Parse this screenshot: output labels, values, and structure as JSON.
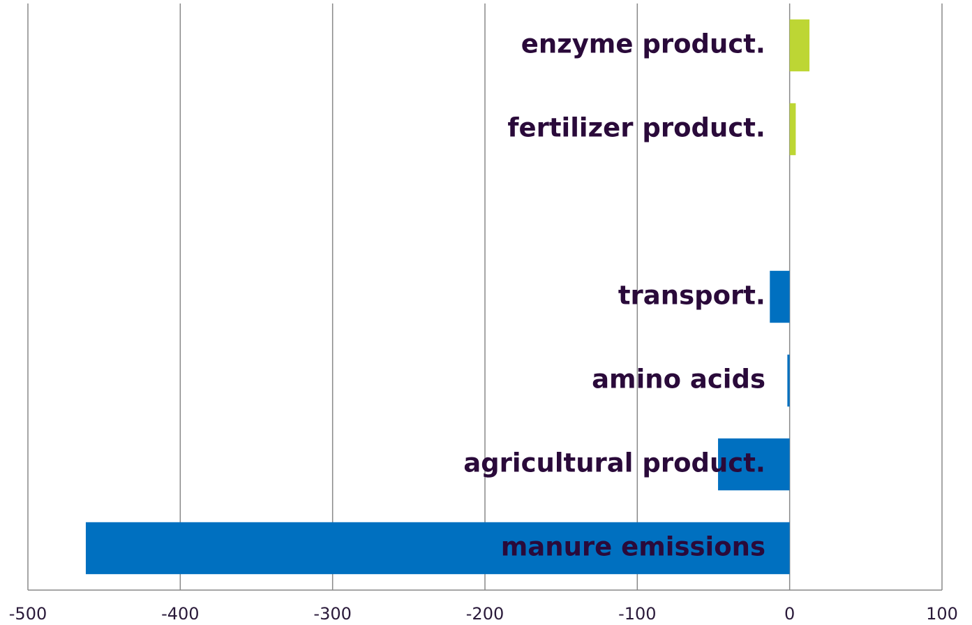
{
  "chart_data": {
    "type": "bar",
    "orientation": "horizontal",
    "categories": [
      "enzyme product.",
      "fertilizer product.",
      null,
      "transport.",
      "amino acids",
      "agricultural product.",
      "manure emissions"
    ],
    "series": [
      {
        "color": "#bdd634",
        "values": [
          13,
          4,
          null,
          null,
          null,
          null,
          null
        ]
      },
      {
        "color": "#0070c0",
        "values": [
          null,
          null,
          null,
          -13,
          -1.5,
          -47,
          -462
        ]
      }
    ],
    "xlim": [
      -500,
      100
    ],
    "xticks": [
      -500,
      -400,
      -300,
      -200,
      -100,
      0,
      100
    ],
    "grid": true
  }
}
